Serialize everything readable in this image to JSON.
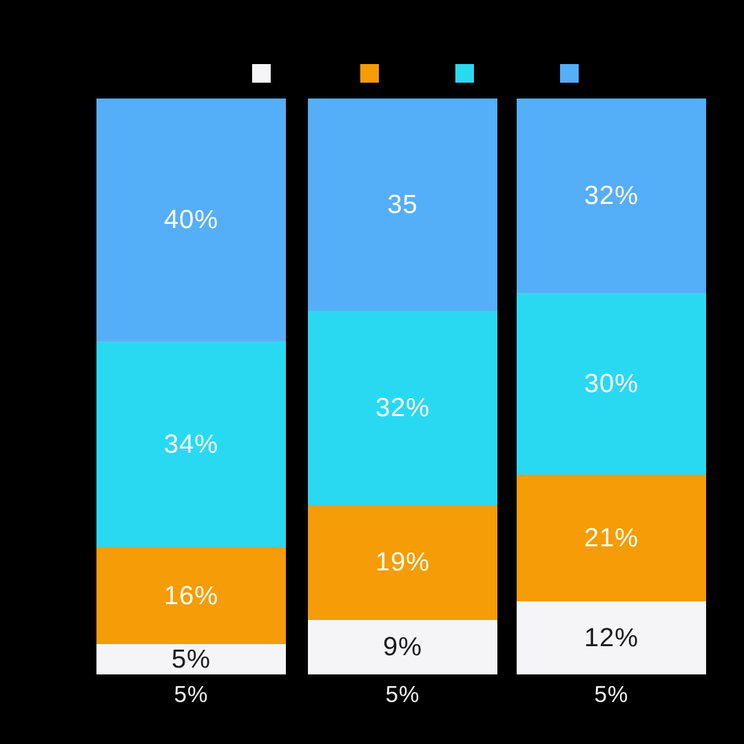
{
  "page": {
    "background": "#000000"
  },
  "chart_data": {
    "type": "bar",
    "subtype": "stacked-vertical-100pct",
    "title": "",
    "xlabel": "",
    "ylabel": "",
    "grid": false,
    "background": "#000000",
    "legend": {
      "position": "top",
      "items": [
        {
          "name": "series-white",
          "label": "",
          "color": "#F5F5F7"
        },
        {
          "name": "series-orange",
          "label": "",
          "color": "#F59C06"
        },
        {
          "name": "series-cyan",
          "label": "",
          "color": "#29D9F2"
        },
        {
          "name": "series-blue",
          "label": "",
          "color": "#55AEF8"
        }
      ]
    },
    "categories": [
      "5%",
      "5%",
      "5%"
    ],
    "category_label_color": "#F2F2F2",
    "stack_order_top_to_bottom": [
      "series-blue",
      "series-cyan",
      "series-orange",
      "series-white"
    ],
    "series": [
      {
        "name": "series-blue",
        "color": "#55AEF8",
        "label_color": "#FFFFFF",
        "values": [
          40,
          35,
          32
        ],
        "labels": [
          "40%",
          "35",
          "32%"
        ]
      },
      {
        "name": "series-cyan",
        "color": "#29D9F2",
        "label_color": "#FFFFFF",
        "values": [
          34,
          32,
          30
        ],
        "labels": [
          "34%",
          "32%",
          "30%"
        ]
      },
      {
        "name": "series-orange",
        "color": "#F59C06",
        "label_color": "#FFFFFF",
        "values": [
          16,
          19,
          21
        ],
        "labels": [
          "16%",
          "19%",
          "21%"
        ]
      },
      {
        "name": "series-white",
        "color": "#F5F5F7",
        "label_color": "#1B1B1D",
        "values": [
          5,
          9,
          12
        ],
        "labels": [
          "5%",
          "9%",
          "12%"
        ]
      }
    ]
  }
}
